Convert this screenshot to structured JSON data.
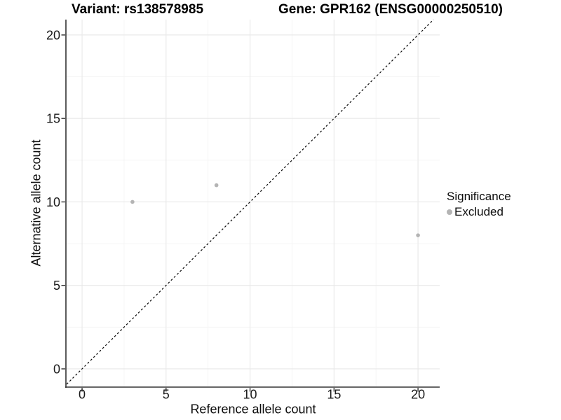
{
  "header": {
    "title_variant": "Variant: rs138578985",
    "title_gene": "Gene: GPR162 (ENSG00000250510)"
  },
  "legend": {
    "title": "Significance",
    "items": [
      {
        "label": "Excluded",
        "color": "#b4b4b4"
      }
    ]
  },
  "chart_data": {
    "type": "scatter",
    "title_left": "Variant: rs138578985",
    "title_right": "Gene: GPR162 (ENSG00000250510)",
    "xlabel": "Reference allele count",
    "ylabel": "Alternative allele count",
    "xlim": [
      -0.92,
      21.29
    ],
    "ylim": [
      -1.05,
      20.92
    ],
    "xticks": [
      0,
      5,
      10,
      15,
      20
    ],
    "yticks": [
      0,
      5,
      10,
      15,
      20
    ],
    "minor_xticks": [
      2.5,
      7.5,
      12.5,
      17.5
    ],
    "minor_yticks": [
      2.5,
      7.5,
      12.5,
      17.5
    ],
    "grid": "major+minor",
    "legend_position": "right",
    "series": [
      {
        "name": "Excluded",
        "color": "#b4b4b4",
        "points": [
          {
            "x": 3,
            "y": 10
          },
          {
            "x": 8,
            "y": 11
          },
          {
            "x": 20,
            "y": 8
          }
        ]
      }
    ],
    "identity_line": {
      "slope": 1,
      "intercept": 0,
      "style": "dashed"
    },
    "colors": {
      "point": "#b4b4b4",
      "grid_major": "#e8e8e8",
      "grid_minor": "#f4f4f4",
      "axis": "#333333",
      "dashed_line": "#0a0a0a",
      "tick_label": "#1a1a1a",
      "background": "#ffffff"
    }
  }
}
